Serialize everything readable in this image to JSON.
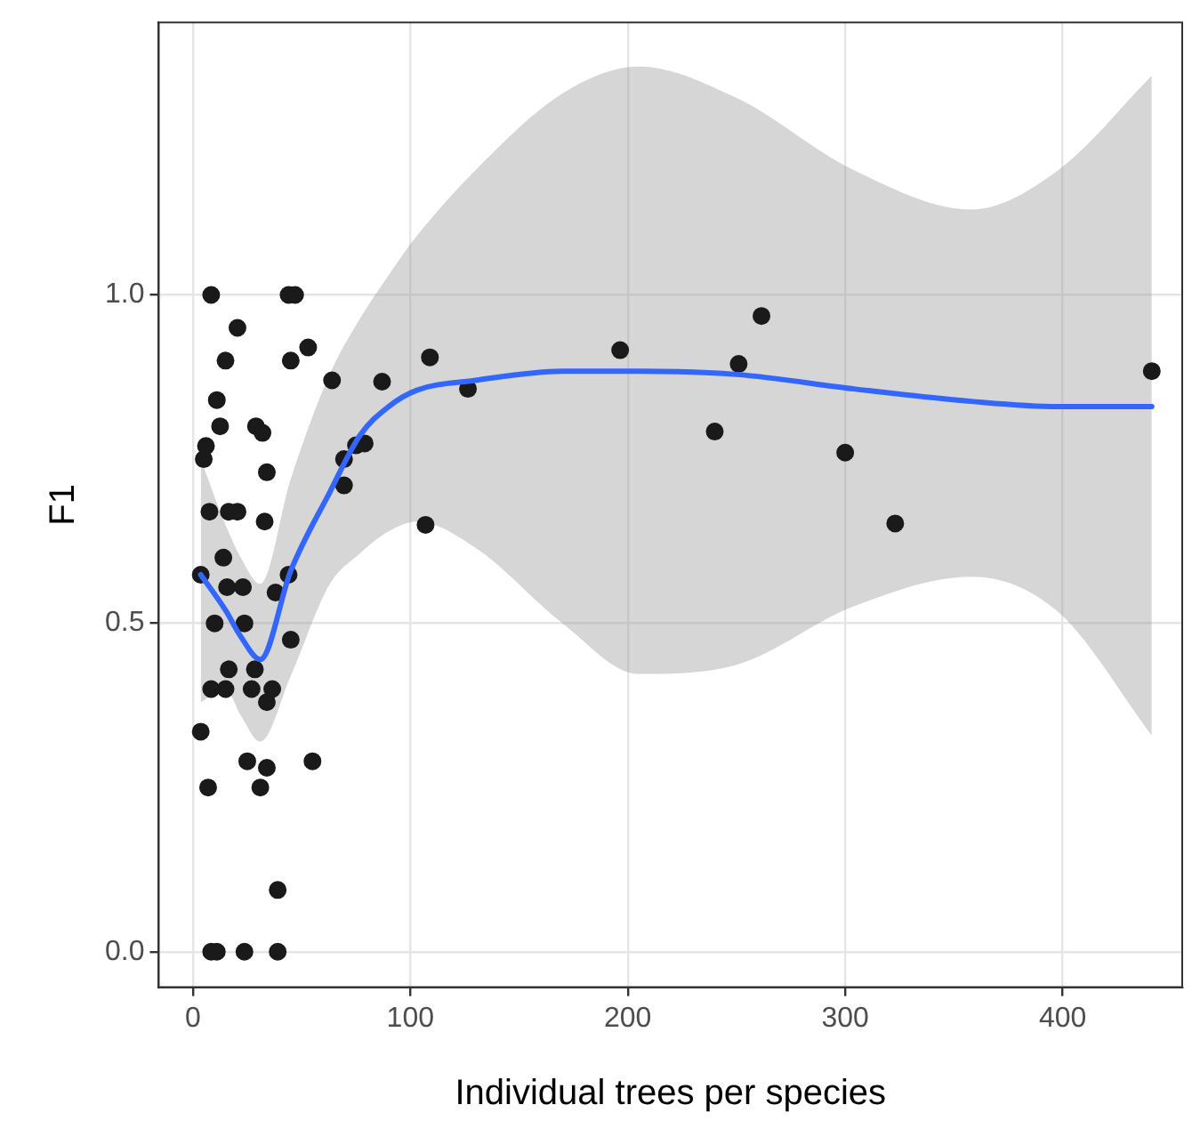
{
  "chart_data": {
    "type": "scatter",
    "xlabel": "Individual trees per species",
    "ylabel": "F1",
    "xlim": [
      -15.7,
      455
    ],
    "ylim": [
      -0.054,
      1.415
    ],
    "xticks": [
      0,
      100,
      200,
      300,
      400
    ],
    "yticks": [
      {
        "value": 0,
        "label": "0.0"
      },
      0.5,
      {
        "value": 1,
        "label": "1.0"
      }
    ],
    "grid": true,
    "series": [
      {
        "type": "scatter",
        "color": "#1a1a1a",
        "marker": "circle",
        "x": [
          8.4,
          44,
          47,
          20.5,
          15,
          45,
          53,
          64,
          11,
          12.5,
          29,
          32,
          6,
          5,
          34,
          69.5,
          69.5,
          7.6,
          16.5,
          20.5,
          33,
          14,
          3.6,
          15.7,
          23,
          44,
          38,
          10,
          23.7,
          45,
          16.5,
          28.5,
          8.4,
          15,
          27,
          36.5,
          34,
          3.6,
          25,
          34,
          55,
          7,
          31,
          39,
          8.4,
          11,
          23.7,
          39,
          87,
          109,
          126.5,
          79,
          75,
          107,
          196.5,
          261.5,
          251,
          240,
          300,
          323,
          441
        ],
        "values": [
          1.0,
          1.0,
          1.0,
          0.95,
          0.9,
          0.9,
          0.92,
          0.87,
          0.84,
          0.8,
          0.8,
          0.79,
          0.77,
          0.75,
          0.73,
          0.75,
          0.71,
          0.67,
          0.67,
          0.67,
          0.655,
          0.6,
          0.574,
          0.555,
          0.555,
          0.574,
          0.547,
          0.5,
          0.5,
          0.475,
          0.43,
          0.43,
          0.4,
          0.4,
          0.4,
          0.4,
          0.38,
          0.335,
          0.29,
          0.28,
          0.29,
          0.25,
          0.25,
          0.094,
          0,
          0,
          0,
          0,
          0.868,
          0.905,
          0.857,
          0.774,
          0.771,
          0.65,
          0.916,
          0.968,
          0.895,
          0.792,
          0.76,
          0.652,
          0.884
        ]
      },
      {
        "type": "line",
        "color": "#3366ff",
        "marker": "none",
        "x": [
          3.6,
          15,
          22,
          31,
          45,
          63,
          77,
          90,
          103,
          130,
          170,
          205,
          250,
          304,
          358,
          398,
          441
        ],
        "values": [
          0.574,
          0.52,
          0.48,
          0.445,
          0.58,
          0.7,
          0.787,
          0.83,
          0.855,
          0.87,
          0.884,
          0.884,
          0.879,
          0.857,
          0.838,
          0.83,
          0.83
        ],
        "lower": [
          0.38,
          0.4,
          0.36,
          0.32,
          0.42,
          0.56,
          0.607,
          0.64,
          0.655,
          0.615,
          0.5,
          0.423,
          0.437,
          0.526,
          0.571,
          0.517,
          0.329
        ],
        "upper": [
          0.75,
          0.65,
          0.6,
          0.56,
          0.72,
          0.88,
          0.965,
          1.03,
          1.09,
          1.19,
          1.307,
          1.348,
          1.3,
          1.19,
          1.13,
          1.19,
          1.334
        ]
      }
    ]
  }
}
